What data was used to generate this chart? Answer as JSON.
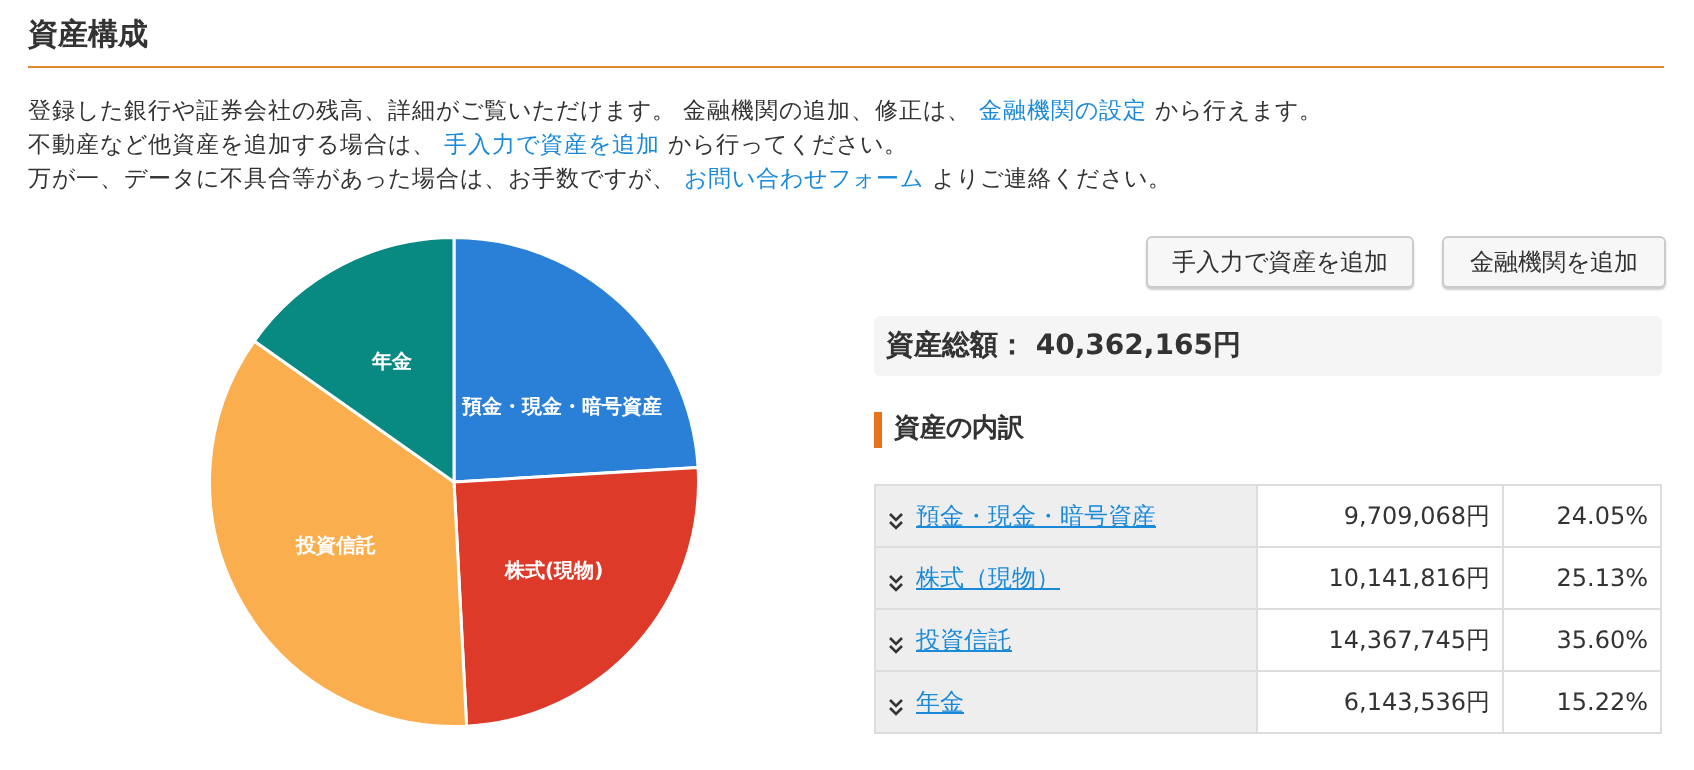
{
  "chart_data": {
    "type": "pie",
    "title": "資産構成",
    "categories": [
      "預金・現金・暗号資産",
      "株式(現物)",
      "投資信託",
      "年金"
    ],
    "values": [
      24.05,
      25.13,
      35.6,
      15.22
    ],
    "colors": [
      "#2a7fd6",
      "#de3a2a",
      "#fbae4e",
      "#088a82"
    ],
    "legend": false,
    "annotations": [
      "登録した銀行や証券会社の残高、詳細がご覧いただけます。 金融機関の追加、修正は、",
      "金融機関の設定",
      "から行えます。",
      "不動産など他資産を追加する場合は、",
      "手入力で資産を追加",
      "から行ってください。",
      "万が一、データに不具合等があった場合は、お手数ですが、",
      "お問い合わせフォーム",
      "よりご連絡ください。",
      "手入力で資産を追加",
      "金融機関を追加",
      "資産総額： 40,362,165円",
      "資産の内訳",
      "預金・現金・暗号資産",
      "株式（現物）",
      "投資信託",
      "年金",
      "24.05%",
      "25.13%",
      "35.60%",
      "15.22%",
      "9,709,068円",
      "10,141,816円",
      "14,367,745円",
      "6,143,536円"
    ]
  }
}
